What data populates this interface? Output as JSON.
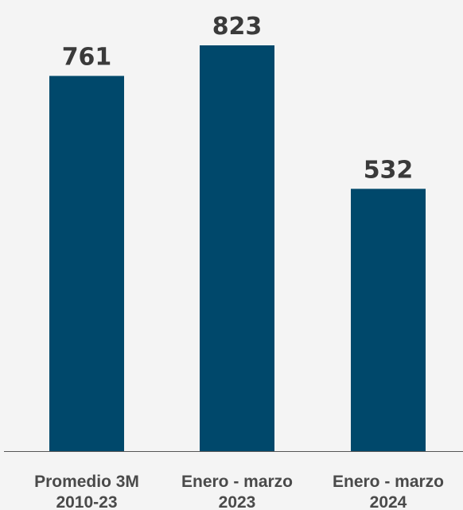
{
  "chart_data": {
    "type": "bar",
    "categories": [
      [
        "Promedio 3M",
        "2010-23"
      ],
      [
        "Enero - marzo",
        "2023"
      ],
      [
        "Enero - marzo",
        "2024"
      ]
    ],
    "values": [
      761,
      823,
      532
    ],
    "value_labels": [
      "761",
      "823",
      "532"
    ],
    "title": "",
    "xlabel": "",
    "ylabel": "",
    "ylim": [
      0,
      900
    ],
    "grid": false,
    "legend": "none",
    "bar_color": "#00486b",
    "axis_color": "#555555",
    "label_color": "#3a3a3a"
  }
}
